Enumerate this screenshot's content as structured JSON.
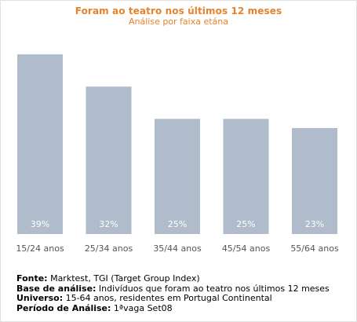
{
  "chart_data": {
    "type": "bar",
    "title": "Foram ao teatro nos últimos 12 meses",
    "subtitle": "Análise por faixa etána",
    "categories": [
      "15/24 anos",
      "25/34 anos",
      "35/44 anos",
      "45/54 anos",
      "55/64 anos"
    ],
    "values": [
      39,
      32,
      25,
      25,
      23
    ],
    "value_labels": [
      "39%",
      "32%",
      "25%",
      "25%",
      "23%"
    ],
    "ylim": [
      0,
      45
    ],
    "grid": false,
    "legend": "none",
    "bar_color": "#b0bccc",
    "label_color": "#ffffff"
  },
  "notes": [
    {
      "label": "Fonte:",
      "text": " Marktest, TGI (Target Group Index)"
    },
    {
      "label": "Base de análise:",
      "text": " Indivíduos que foram ao teatro nos últimos 12 meses"
    },
    {
      "label": "Universo:",
      "text": " 15-64 anos, residentes em Portugal Continental"
    },
    {
      "label": "Período de Análise:",
      "text": " 1ªvaga Set08"
    }
  ],
  "colors": {
    "title": "#e8822a",
    "tick_label": "#555555"
  }
}
